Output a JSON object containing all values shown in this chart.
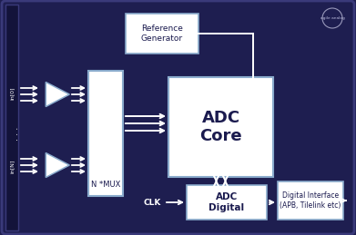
{
  "bg_color": "#1e1e50",
  "border_color": "#3a3a7a",
  "left_bar_color": "#13133a",
  "box_fill": "#ffffff",
  "box_edge": "#8aabcc",
  "text_dark": "#1a1a4e",
  "text_white": "#ffffff",
  "arrow_white": "#ffffff",
  "ref_gen_label": "Reference\nGenerator",
  "adc_core_label": "ADC\nCore",
  "adc_digital_label": "ADC\nDigital",
  "mux_label": "N *MUX",
  "clk_label": "CLK",
  "dig_iface_label": "Digital Interface\n(APB, Tilelink etc)",
  "input_top_label": "in[0]",
  "input_bot_label": "in[N]",
  "logo_text": "agile analog"
}
